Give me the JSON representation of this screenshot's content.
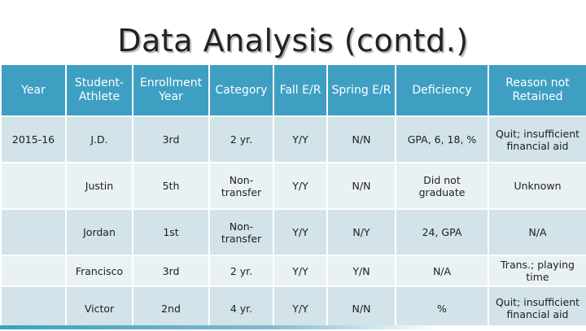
{
  "slide": {
    "title": "Data Analysis (contd.)"
  },
  "table": {
    "headers": {
      "year": "Year",
      "student_athlete": "Student-Athlete",
      "enrollment_year": "Enrollment Year",
      "category": "Category",
      "fall_er": "Fall E/R",
      "spring_er": "Spring E/R",
      "deficiency": "Deficiency",
      "reason": "Reason not Retained"
    },
    "rows": [
      {
        "year": "2015-16",
        "student": "J.D.",
        "enrollment": "3rd",
        "category": "2 yr.",
        "fall": "Y/Y",
        "spring": "N/N",
        "deficiency": "GPA, 6, 18, %",
        "reason": "Quit; insufficient financial aid"
      },
      {
        "year": "",
        "student": "Justin",
        "enrollment": "5th",
        "category": "Non-transfer",
        "fall": "Y/Y",
        "spring": "N/N",
        "deficiency": "Did not graduate",
        "reason": "Unknown"
      },
      {
        "year": "",
        "student": "Jordan",
        "enrollment": "1st",
        "category": "Non-transfer",
        "fall": "Y/Y",
        "spring": "N/Y",
        "deficiency": "24, GPA",
        "reason": "N/A"
      },
      {
        "year": "",
        "student": "Francisco",
        "enrollment": "3rd",
        "category": "2 yr.",
        "fall": "Y/Y",
        "spring": "Y/N",
        "deficiency": "N/A",
        "reason": "Trans.; playing time"
      },
      {
        "year": "",
        "student": "Victor",
        "enrollment": "2nd",
        "category": "4 yr.",
        "fall": "Y/Y",
        "spring": "N/N",
        "deficiency": "%",
        "reason": "Quit; insufficient financial aid"
      }
    ]
  },
  "colors": {
    "header": "#3e9fc3",
    "row_dark": "#d2e3ea",
    "row_light": "#e9f1f5"
  }
}
